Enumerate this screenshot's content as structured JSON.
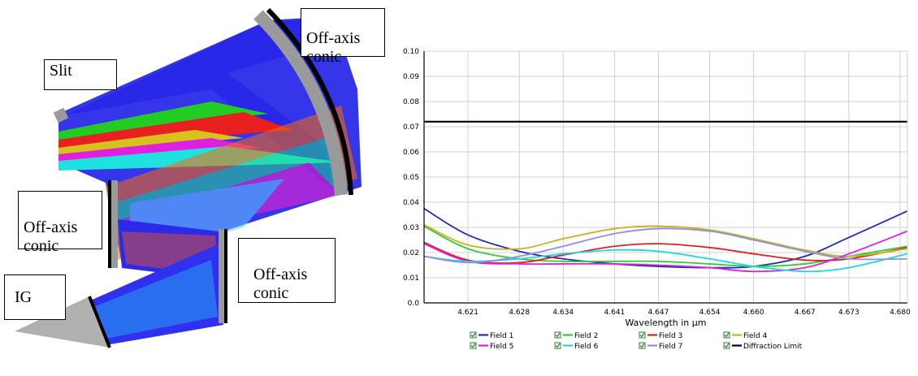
{
  "diagram": {
    "labels": {
      "slit": "Slit",
      "mirror_top": "Off-axis\nconic",
      "mirror_left": "Off-axis\nconic",
      "mirror_right": "Off-axis\nconic",
      "grating": "IG"
    }
  },
  "chart_data": {
    "type": "line",
    "title": "",
    "xlabel": "Wavelength in µm",
    "ylabel": "",
    "xlim": [
      4.615,
      4.681
    ],
    "ylim": [
      0.0,
      0.1
    ],
    "x_ticks": [
      "4.621",
      "4.628",
      "4.634",
      "4.641",
      "4.647",
      "4.654",
      "4.660",
      "4.667",
      "4.673",
      "4.680"
    ],
    "y_ticks": [
      "0.0",
      "0.01",
      "0.02",
      "0.03",
      "0.04",
      "0.05",
      "0.06",
      "0.07",
      "0.08",
      "0.09",
      "0.10"
    ],
    "grid": true,
    "legend_position": "bottom",
    "x": [
      4.615,
      4.621,
      4.628,
      4.634,
      4.641,
      4.647,
      4.654,
      4.66,
      4.667,
      4.673,
      4.681
    ],
    "series": [
      {
        "name": "Field 1",
        "color": "#1f2fb5",
        "values": [
          0.0375,
          0.027,
          0.0205,
          0.0175,
          0.0155,
          0.0145,
          0.014,
          0.0145,
          0.0185,
          0.026,
          0.0365
        ]
      },
      {
        "name": "Field 2",
        "color": "#33cc33",
        "values": [
          0.0305,
          0.0215,
          0.0175,
          0.0165,
          0.0165,
          0.0165,
          0.0155,
          0.0145,
          0.0155,
          0.0185,
          0.0225
        ]
      },
      {
        "name": "Field 3",
        "color": "#e32020",
        "values": [
          0.024,
          0.017,
          0.016,
          0.019,
          0.0225,
          0.0235,
          0.022,
          0.0195,
          0.017,
          0.0175,
          0.022
        ]
      },
      {
        "name": "Field 4",
        "color": "#c9b21d",
        "values": [
          0.031,
          0.023,
          0.0215,
          0.0255,
          0.0295,
          0.0305,
          0.029,
          0.0255,
          0.021,
          0.0185,
          0.0215
        ]
      },
      {
        "name": "Field 5",
        "color": "#e020e0",
        "values": [
          0.0235,
          0.0165,
          0.0155,
          0.0155,
          0.0155,
          0.015,
          0.014,
          0.0125,
          0.014,
          0.0195,
          0.0285
        ]
      },
      {
        "name": "Field 6",
        "color": "#20d8d8",
        "values": [
          0.0185,
          0.0165,
          0.0175,
          0.0195,
          0.021,
          0.0205,
          0.0175,
          0.0145,
          0.0125,
          0.014,
          0.0195
        ]
      },
      {
        "name": "Field 7",
        "color": "#8f8fe8",
        "values": [
          0.0185,
          0.016,
          0.0185,
          0.0225,
          0.0275,
          0.0295,
          0.0285,
          0.025,
          0.0205,
          0.0175,
          0.0175
        ]
      },
      {
        "name": "Diffraction Limit",
        "color": "#000000",
        "values": [
          0.072,
          0.072,
          0.072,
          0.072,
          0.072,
          0.072,
          0.072,
          0.072,
          0.072,
          0.072,
          0.072
        ]
      }
    ]
  }
}
